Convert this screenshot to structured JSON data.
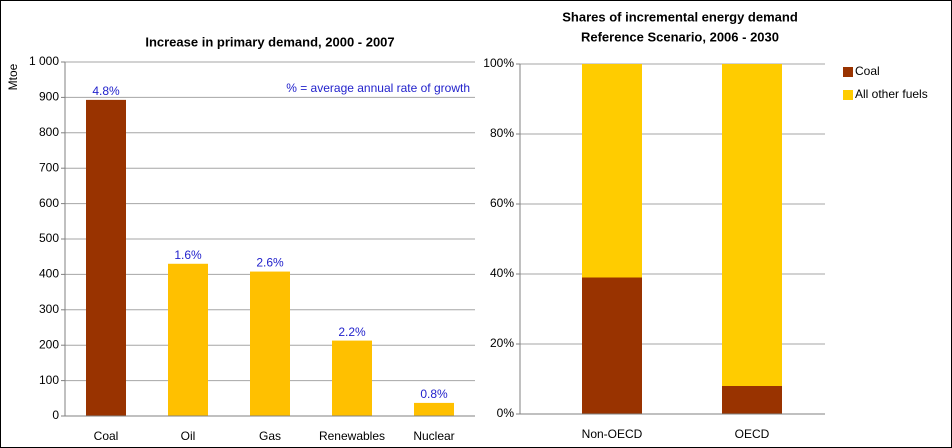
{
  "chart_data": [
    {
      "type": "bar",
      "title": "Increase in primary demand, 2000 - 2007",
      "y_label": "Mtoe",
      "annotation": "% = average annual rate of growth",
      "categories": [
        "Coal",
        "Oil",
        "Gas",
        "Renewables",
        "Nuclear"
      ],
      "values": [
        893,
        430,
        408,
        213,
        37
      ],
      "bar_labels": [
        "4.8%",
        "1.6%",
        "2.6%",
        "2.2%",
        "0.8%"
      ],
      "colors": [
        "#993300",
        "#ffc000",
        "#ffc000",
        "#ffc000",
        "#ffc000"
      ],
      "ylim": [
        0,
        1000
      ],
      "yticks": [
        0,
        100,
        200,
        300,
        400,
        500,
        600,
        700,
        800,
        900,
        {
          "value": 1000,
          "label": "1 000"
        }
      ],
      "grid": true
    },
    {
      "type": "stacked_bar",
      "title": "Shares of incremental energy demand",
      "subtitle": "Reference Scenario,  2006 - 2030",
      "categories": [
        "Non-OECD",
        "OECD"
      ],
      "series": [
        {
          "name": "Coal",
          "color": "#993300",
          "values": [
            39,
            8
          ]
        },
        {
          "name": "All other fuels",
          "color": "#ffcc00",
          "values": [
            61,
            92
          ]
        }
      ],
      "ylim": [
        0,
        100
      ],
      "yticks": [
        {
          "value": 0,
          "label": "0%"
        },
        {
          "value": 20,
          "label": "20%"
        },
        {
          "value": 40,
          "label": "40%"
        },
        {
          "value": 60,
          "label": "60%"
        },
        {
          "value": 80,
          "label": "80%"
        },
        {
          "value": 100,
          "label": "100%"
        }
      ],
      "grid": true,
      "legend": "right"
    }
  ]
}
